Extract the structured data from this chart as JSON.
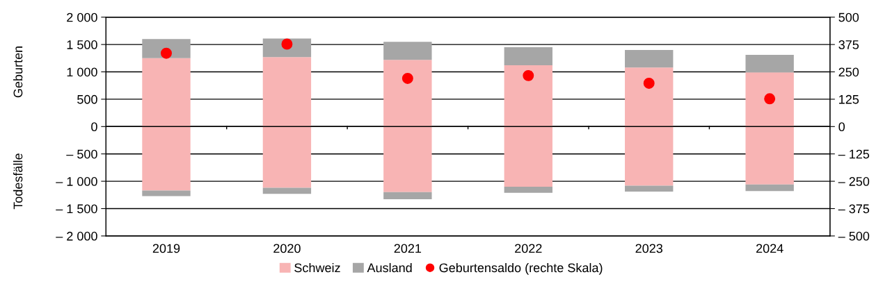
{
  "chart_data": {
    "type": "bar",
    "stacked": true,
    "categories": [
      "2019",
      "2020",
      "2021",
      "2022",
      "2023",
      "2024"
    ],
    "series": [
      {
        "name": "Schweiz",
        "color": "#f8b4b4",
        "values": [
          1250,
          1270,
          1220,
          1120,
          1080,
          990
        ]
      },
      {
        "name": "Ausland",
        "color": "#a6a6a6",
        "values": [
          350,
          340,
          330,
          330,
          320,
          320
        ]
      },
      {
        "color": "#f8b4b4",
        "values": [
          -1170,
          -1120,
          -1200,
          -1100,
          -1080,
          -1060
        ]
      },
      {
        "color": "#a6a6a6",
        "values": [
          -100,
          -110,
          -130,
          -110,
          -110,
          -120
        ]
      },
      {
        "name": "Geburtensaldo (rechte Skala)",
        "type": "scatter",
        "axis": "y2",
        "color": "#ff0000",
        "marker": "circle",
        "values": [
          335,
          377,
          220,
          233,
          198,
          127
        ]
      }
    ],
    "ylim": [
      -2000,
      2000
    ],
    "yticks": [
      {
        "value": -2000,
        "label": "– 2 000"
      },
      {
        "value": -1500,
        "label": "– 1 500"
      },
      {
        "value": -1000,
        "label": "– 1 000"
      },
      {
        "value": -500,
        "label": "– 500"
      },
      0,
      {
        "value": 500,
        "label": "500"
      },
      {
        "value": 1000,
        "label": "1 000"
      },
      {
        "value": 1500,
        "label": "1 500"
      },
      {
        "value": 2000,
        "label": "2 000"
      }
    ],
    "y2lim": [
      -500,
      500
    ],
    "y2ticks": [
      {
        "value": -500,
        "label": "– 500"
      },
      {
        "value": -375,
        "label": "– 375"
      },
      {
        "value": -250,
        "label": "– 250"
      },
      {
        "value": -125,
        "label": "– 125"
      },
      0,
      125,
      250,
      375,
      500
    ],
    "annotations": [
      "Geburten",
      "Todesfälle"
    ],
    "grid": "y",
    "legend": "bottom"
  }
}
